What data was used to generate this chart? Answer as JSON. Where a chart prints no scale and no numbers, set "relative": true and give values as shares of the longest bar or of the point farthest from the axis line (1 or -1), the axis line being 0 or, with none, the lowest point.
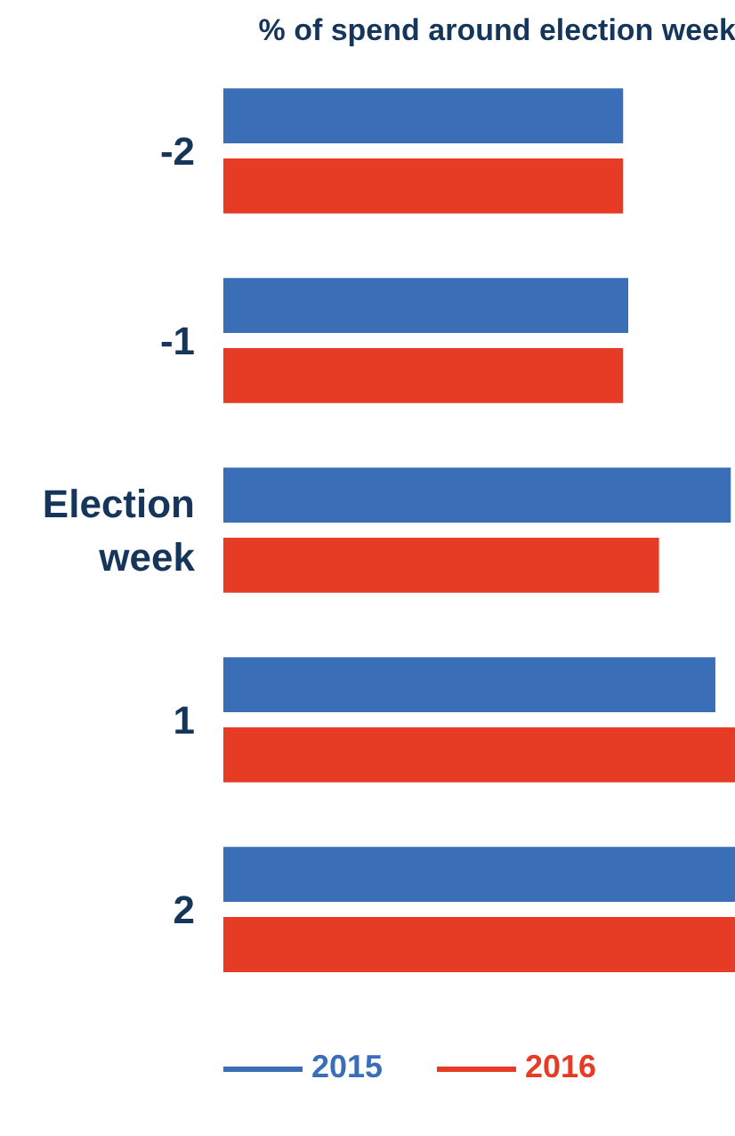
{
  "chart_data": {
    "type": "bar",
    "orientation": "horizontal",
    "relative": true,
    "title": "% of spend around election week",
    "categories": [
      "-2",
      "-1",
      "Election week",
      "1",
      "2"
    ],
    "series": [
      {
        "name": "2015",
        "color": "#3a6fb7",
        "values": [
          0.78,
          0.79,
          0.99,
          0.96,
          1
        ]
      },
      {
        "name": "2016",
        "color": "#e63b24",
        "values": [
          0.78,
          0.78,
          0.85,
          1,
          1
        ]
      }
    ],
    "legend": "bottom",
    "grid": false
  }
}
